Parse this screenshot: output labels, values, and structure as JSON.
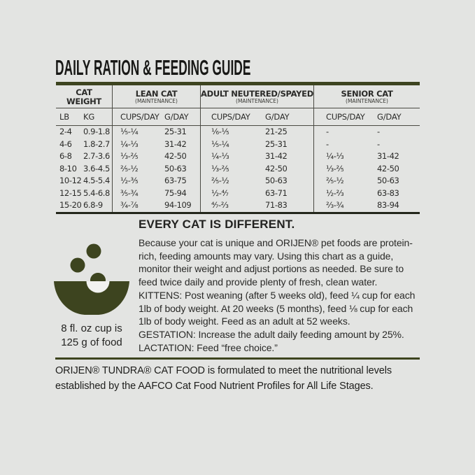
{
  "title": "DAILY RATION & FEEDING GUIDE",
  "colors": {
    "background": "#e3e4e2",
    "olive_accent": "#3d441f",
    "table_line": "#4a4a43",
    "table_bottom_border": "#23261b",
    "text": "#262624"
  },
  "table": {
    "groups": [
      {
        "label": "CAT\nWEIGHT",
        "sub": ""
      },
      {
        "label": "LEAN CAT",
        "sub": "(MAINTENANCE)"
      },
      {
        "label": "ADULT NEUTERED/SPAYED",
        "sub": "(MAINTENANCE)"
      },
      {
        "label": "SENIOR CAT",
        "sub": "(MAINTENANCE)"
      }
    ],
    "columns": [
      "LB",
      "KG",
      "CUPS/DAY",
      "G/DAY",
      "CUPS/DAY",
      "G/DAY",
      "CUPS/DAY",
      "G/DAY"
    ],
    "rows": [
      [
        "2-4",
        "0.9-1.8",
        "⅕-¼",
        "25-31",
        "⅙-⅕",
        "21-25",
        "-",
        "-"
      ],
      [
        "4-6",
        "1.8-2.7",
        "¼-⅓",
        "31-42",
        "⅕-¼",
        "25-31",
        "-",
        "-"
      ],
      [
        "6-8",
        "2.7-3.6",
        "⅓-⅖",
        "42-50",
        "¼-⅓",
        "31-42",
        "¼-⅓",
        "31-42"
      ],
      [
        "8-10",
        "3.6-4.5",
        "⅖-½",
        "50-63",
        "⅓-⅖",
        "42-50",
        "⅓-⅖",
        "42-50"
      ],
      [
        "10-12",
        "4.5-5.4",
        "½-⅗",
        "63-75",
        "⅖-½",
        "50-63",
        "⅖-½",
        "50-63"
      ],
      [
        "12-15",
        "5.4-6.8",
        "⅗-¾",
        "75-94",
        "½-⁴⁄₇",
        "63-71",
        "½-⅔",
        "63-83"
      ],
      [
        "15-20",
        "6.8-9",
        "¾-⅞",
        "94-109",
        "⁴⁄₇-⅔",
        "71-83",
        "⅔-¾",
        "83-94"
      ]
    ]
  },
  "every_cat": {
    "heading": "EVERY CAT IS DIFFERENT.",
    "lines": [
      "Because your cat is unique and ORIJEN® pet foods are protein-",
      "rich, feeding amounts may vary. Using this chart as a guide,",
      "monitor their weight and adjust portions as needed. Be sure to",
      "feed twice daily and provide plenty of fresh, clean water.",
      "KITTENS: Post weaning (after 5 weeks old), feed ¼ cup for each",
      "1lb of body weight. At 20 weeks (5 months), feed ⅛ cup for each",
      "1lb of body weight. Feed as an adult at 52 weeks.",
      "GESTATION: Increase the adult daily feeding amount by 25%.",
      "LACTATION: Feed “free choice.”"
    ]
  },
  "cup_note": {
    "line1": "8 fl. oz cup is",
    "line2": "125 g of food"
  },
  "icon": {
    "name": "food-bowl-with-kibble-icon"
  },
  "footer": {
    "lines": [
      "ORIJEN® TUNDRA® CAT FOOD is formulated to meet the nutritional levels",
      "established by the AAFCO Cat Food Nutrient Profiles for All Life Stages."
    ]
  }
}
